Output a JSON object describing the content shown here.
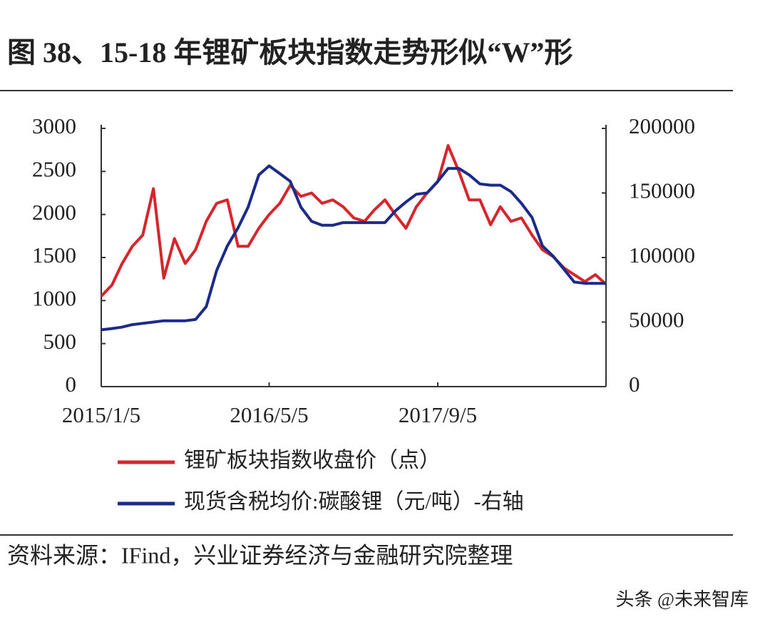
{
  "chart_data": {
    "type": "line",
    "title": "图 38、15-18 年锂矿板块指数走势形似“W”形",
    "source": "资料来源：IFind，兴业证券经济与金融研究院整理",
    "watermark": "头条 @未来智库",
    "x": [
      "2015/1/5",
      "2015/2/5",
      "2015/3/5",
      "2015/4/5",
      "2015/5/5",
      "2015/6/5",
      "2015/7/5",
      "2015/8/5",
      "2015/9/5",
      "2015/10/5",
      "2015/11/5",
      "2015/12/5",
      "2016/1/5",
      "2016/2/5",
      "2016/3/5",
      "2016/4/5",
      "2016/5/5",
      "2016/6/5",
      "2016/7/5",
      "2016/8/5",
      "2016/9/5",
      "2016/10/5",
      "2016/11/5",
      "2016/12/5",
      "2017/1/5",
      "2017/2/5",
      "2017/3/5",
      "2017/4/5",
      "2017/5/5",
      "2017/6/5",
      "2017/7/5",
      "2017/8/5",
      "2017/9/5",
      "2017/10/5",
      "2017/11/5",
      "2017/12/5",
      "2018/1/5",
      "2018/2/5",
      "2018/3/5",
      "2018/4/5",
      "2018/5/5",
      "2018/6/5",
      "2018/7/5",
      "2018/8/5",
      "2018/9/5",
      "2018/10/5",
      "2018/11/5",
      "2018/12/5",
      "2019/1/5"
    ],
    "xlim": [
      "2015/1/5",
      "2019/1/5"
    ],
    "xticks": [
      "2015/1/5",
      "2016/5/5",
      "2017/9/5"
    ],
    "ylim": [
      0,
      3000
    ],
    "yticks": [
      0,
      500,
      1000,
      1500,
      2000,
      2500,
      3000
    ],
    "y2lim": [
      0,
      200000
    ],
    "y2ticks": [
      0,
      50000,
      100000,
      150000,
      200000
    ],
    "series": [
      {
        "name": "锂矿板块指数收盘价（点）",
        "color": "#d7262b",
        "axis": "y",
        "values": [
          1050,
          1180,
          1420,
          1630,
          1760,
          2300,
          1260,
          1720,
          1430,
          1590,
          1920,
          2130,
          2170,
          1630,
          1630,
          1840,
          2000,
          2130,
          2340,
          2210,
          2250,
          2130,
          2170,
          2090,
          1960,
          1920,
          2050,
          2170,
          2000,
          1840,
          2090,
          2250,
          2380,
          2800,
          2500,
          2170,
          2170,
          1880,
          2090,
          1920,
          1960,
          1760,
          1590,
          1510,
          1380,
          1300,
          1220,
          1300,
          1190
        ]
      },
      {
        "name": "现货含税均价:碳酸锂（元/吨）-右轴",
        "color": "#1c2a8a",
        "axis": "y2",
        "values": [
          44000,
          45000,
          46000,
          48000,
          49000,
          50000,
          51000,
          51000,
          51000,
          52000,
          62000,
          90000,
          109000,
          123000,
          139000,
          164000,
          171000,
          165000,
          159000,
          139000,
          128000,
          125000,
          125000,
          127000,
          127000,
          127000,
          127000,
          127000,
          136000,
          143000,
          149000,
          150000,
          159000,
          169000,
          169000,
          164000,
          157000,
          156000,
          156000,
          151000,
          142000,
          131000,
          109000,
          101000,
          91000,
          81000,
          80000,
          80000,
          80000
        ]
      }
    ]
  }
}
